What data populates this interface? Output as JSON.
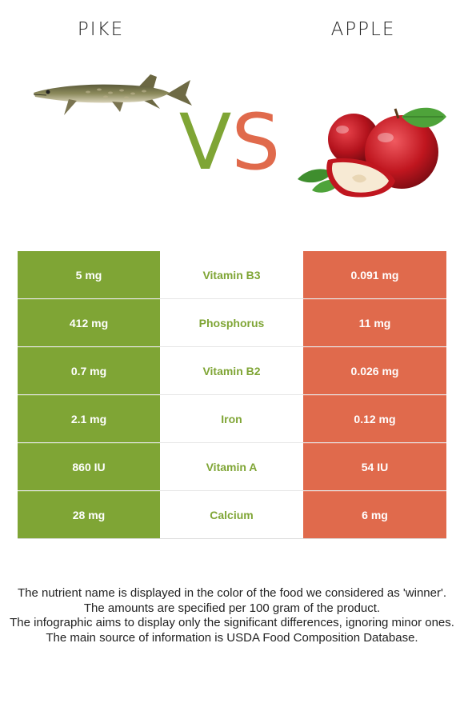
{
  "titles": {
    "left": "PIKE",
    "right": "APPLE"
  },
  "vs": {
    "v": "V",
    "s": "S"
  },
  "colors": {
    "left": "#7fa535",
    "right": "#e06a4c"
  },
  "rows": [
    {
      "left": "5 mg",
      "nutrient": "Vitamin B3",
      "right": "0.091 mg",
      "winner": "left"
    },
    {
      "left": "412 mg",
      "nutrient": "Phosphorus",
      "right": "11 mg",
      "winner": "left"
    },
    {
      "left": "0.7 mg",
      "nutrient": "Vitamin B2",
      "right": "0.026 mg",
      "winner": "left"
    },
    {
      "left": "2.1 mg",
      "nutrient": "Iron",
      "right": "0.12 mg",
      "winner": "left"
    },
    {
      "left": "860 IU",
      "nutrient": "Vitamin A",
      "right": "54 IU",
      "winner": "left"
    },
    {
      "left": "28 mg",
      "nutrient": "Calcium",
      "right": "6 mg",
      "winner": "left"
    }
  ],
  "footer": [
    "The nutrient name is displayed in the color of the food we considered as 'winner'.",
    "The amounts are specified per 100 gram of the product.",
    "The infographic aims to display only the significant differences, ignoring minor ones.",
    "The main source of information is USDA Food Composition Database."
  ]
}
